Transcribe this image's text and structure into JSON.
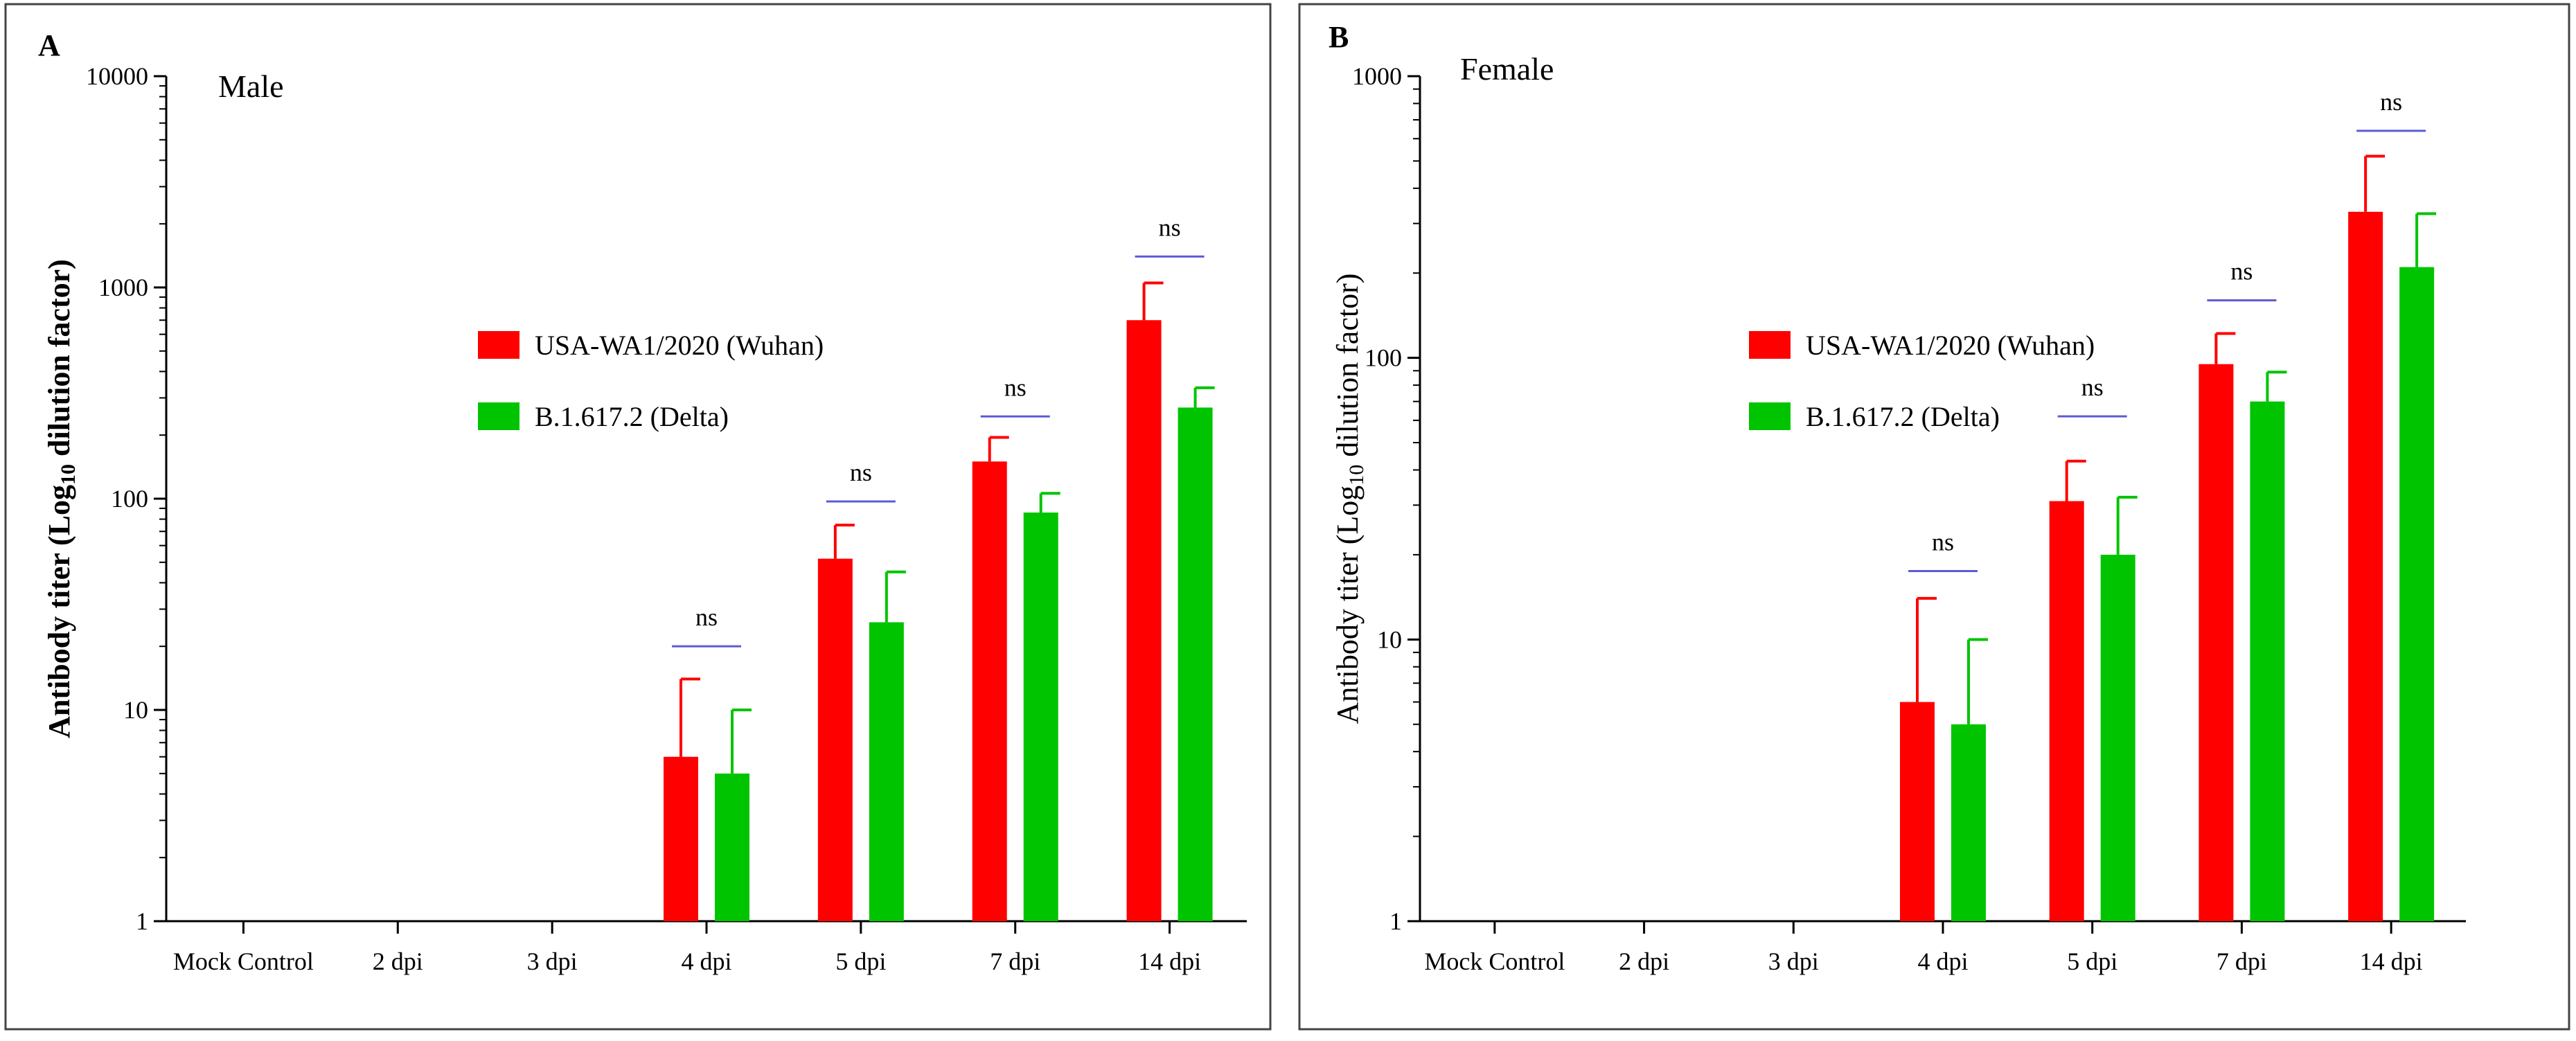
{
  "colors": {
    "series1": "#ff0000",
    "series2": "#00c400",
    "bracket": "#5b5bd6",
    "axis": "#000000",
    "frame": "#444444"
  },
  "chart_data": [
    {
      "panel_label": "A",
      "type": "bar",
      "scale": "log",
      "title": "Male",
      "ylabel_main": "Antibody titer (Log",
      "ylabel_sub": "10",
      "ylabel_tail": " dilution factor)",
      "ylim": [
        1,
        10000
      ],
      "yticks": [
        1,
        10,
        100,
        1000,
        10000
      ],
      "ytick_labels": [
        "1",
        "10",
        "100",
        "1000",
        "10000"
      ],
      "categories": [
        "Mock Control",
        "2 dpi",
        "3 dpi",
        "4 dpi",
        "5 dpi",
        "7 dpi",
        "14 dpi"
      ],
      "series": [
        {
          "name": "USA-WA1/2020 (Wuhan)",
          "values": [
            null,
            null,
            null,
            6,
            52,
            150,
            700
          ],
          "errors": [
            null,
            null,
            null,
            14,
            75,
            195,
            1050
          ]
        },
        {
          "name": "B.1.617.2 (Delta)",
          "values": [
            null,
            null,
            null,
            5,
            26,
            86,
            270
          ],
          "errors": [
            null,
            null,
            null,
            10,
            45,
            106,
            335
          ]
        }
      ],
      "brackets": [
        {
          "category": "4 dpi",
          "text": "ns",
          "level": 20
        },
        {
          "category": "5 dpi",
          "text": "ns",
          "level": 97
        },
        {
          "category": "7 dpi",
          "text": "ns",
          "level": 245
        },
        {
          "category": "14 dpi",
          "text": "ns",
          "level": 1400
        }
      ],
      "legend_position": "center-right"
    },
    {
      "panel_label": "B",
      "type": "bar",
      "scale": "log",
      "title": "Female",
      "ylabel_main": "Antibody titer (Log",
      "ylabel_sub": "10",
      "ylabel_tail": " dilution factor)",
      "ylim": [
        1,
        1000
      ],
      "yticks": [
        1,
        10,
        100,
        1000
      ],
      "ytick_labels": [
        "1",
        "10",
        "100",
        "1000"
      ],
      "categories": [
        "Mock Control",
        "2 dpi",
        "3 dpi",
        "4 dpi",
        "5 dpi",
        "7 dpi",
        "14 dpi"
      ],
      "series": [
        {
          "name": "USA-WA1/2020 (Wuhan)",
          "values": [
            null,
            null,
            null,
            6,
            31,
            95,
            330
          ],
          "errors": [
            null,
            null,
            null,
            14,
            43,
            122,
            520
          ]
        },
        {
          "name": "B.1.617.2 (Delta)",
          "values": [
            null,
            null,
            null,
            5,
            20,
            70,
            210
          ],
          "errors": [
            null,
            null,
            null,
            10,
            32,
            89,
            325
          ]
        }
      ],
      "brackets": [
        {
          "category": "4 dpi",
          "text": "ns",
          "level": 17.5
        },
        {
          "category": "5 dpi",
          "text": "ns",
          "level": 62
        },
        {
          "category": "7 dpi",
          "text": "ns",
          "level": 160
        },
        {
          "category": "14 dpi",
          "text": "ns",
          "level": 640
        }
      ],
      "legend_position": "center-left"
    }
  ]
}
